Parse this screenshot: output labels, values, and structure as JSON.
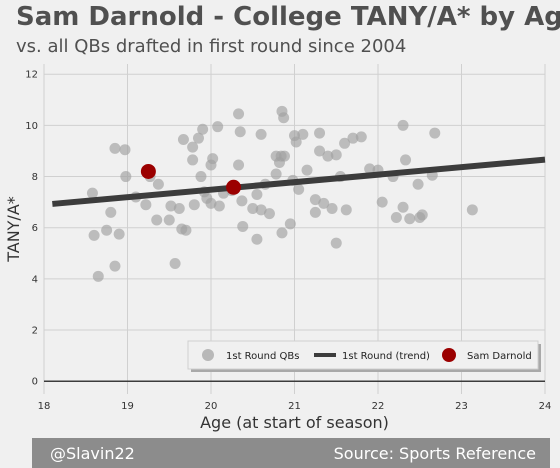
{
  "header": {
    "title": "Sam Darnold - College TANY/A* by Age",
    "subtitle": "vs. all QBs drafted in first round since 2004"
  },
  "footer": {
    "credit": "@Slavin22",
    "source": "Source: Sports Reference"
  },
  "chart_data": {
    "type": "scatter",
    "xlabel": "Age (at start of season)",
    "ylabel": "TANY/A*",
    "xlim": [
      18,
      24
    ],
    "ylim": [
      -0.5,
      12.4
    ],
    "xticks": [
      18,
      19,
      20,
      21,
      22,
      23,
      24
    ],
    "yticks": [
      0,
      2,
      4,
      6,
      8,
      10,
      12
    ],
    "grid": true,
    "legend_position": "bottom-right",
    "colors": {
      "qbs": "#a0a0a0",
      "trend": "#3c3c3c",
      "darnold": "#9b0000",
      "baseline": "#3c3c3c"
    },
    "series": [
      {
        "name": "1st Round QBs",
        "kind": "scatter",
        "points": [
          [
            18.58,
            7.35
          ],
          [
            18.6,
            5.7
          ],
          [
            18.65,
            4.1
          ],
          [
            18.75,
            5.9
          ],
          [
            18.8,
            6.6
          ],
          [
            18.85,
            9.1
          ],
          [
            18.85,
            4.5
          ],
          [
            18.9,
            5.75
          ],
          [
            18.97,
            9.05
          ],
          [
            18.98,
            8.0
          ],
          [
            19.1,
            7.2
          ],
          [
            19.22,
            6.9
          ],
          [
            19.27,
            8.0
          ],
          [
            19.35,
            6.3
          ],
          [
            19.37,
            7.7
          ],
          [
            19.5,
            6.3
          ],
          [
            19.52,
            6.85
          ],
          [
            19.57,
            4.6
          ],
          [
            19.62,
            6.75
          ],
          [
            19.65,
            5.95
          ],
          [
            19.67,
            9.45
          ],
          [
            19.7,
            5.9
          ],
          [
            19.78,
            8.65
          ],
          [
            19.78,
            9.15
          ],
          [
            19.8,
            6.9
          ],
          [
            19.85,
            9.5
          ],
          [
            19.88,
            8.0
          ],
          [
            19.9,
            9.85
          ],
          [
            19.92,
            7.4
          ],
          [
            19.95,
            7.15
          ],
          [
            20.0,
            6.95
          ],
          [
            20.0,
            8.45
          ],
          [
            20.02,
            8.7
          ],
          [
            20.08,
            9.95
          ],
          [
            20.1,
            6.85
          ],
          [
            20.15,
            7.35
          ],
          [
            20.25,
            7.45
          ],
          [
            20.33,
            10.45
          ],
          [
            20.33,
            8.45
          ],
          [
            20.35,
            9.75
          ],
          [
            20.37,
            7.05
          ],
          [
            20.38,
            6.05
          ],
          [
            20.5,
            6.75
          ],
          [
            20.55,
            5.55
          ],
          [
            20.55,
            7.3
          ],
          [
            20.6,
            9.65
          ],
          [
            20.6,
            6.7
          ],
          [
            20.65,
            7.7
          ],
          [
            20.7,
            6.55
          ],
          [
            20.78,
            8.1
          ],
          [
            20.78,
            8.8
          ],
          [
            20.82,
            8.55
          ],
          [
            20.84,
            8.8
          ],
          [
            20.85,
            10.55
          ],
          [
            20.85,
            5.8
          ],
          [
            20.87,
            10.3
          ],
          [
            20.88,
            8.8
          ],
          [
            20.95,
            6.15
          ],
          [
            20.98,
            7.85
          ],
          [
            21.0,
            9.6
          ],
          [
            21.02,
            9.35
          ],
          [
            21.05,
            7.5
          ],
          [
            21.1,
            9.65
          ],
          [
            21.15,
            8.25
          ],
          [
            21.25,
            7.1
          ],
          [
            21.25,
            6.6
          ],
          [
            21.3,
            9.7
          ],
          [
            21.3,
            9.0
          ],
          [
            21.35,
            6.95
          ],
          [
            21.4,
            8.8
          ],
          [
            21.45,
            6.75
          ],
          [
            21.5,
            5.4
          ],
          [
            21.5,
            8.85
          ],
          [
            21.55,
            8.0
          ],
          [
            21.6,
            9.3
          ],
          [
            21.62,
            6.7
          ],
          [
            21.7,
            9.5
          ],
          [
            21.8,
            9.55
          ],
          [
            21.9,
            8.3
          ],
          [
            22.0,
            8.25
          ],
          [
            22.05,
            7.0
          ],
          [
            22.18,
            8.0
          ],
          [
            22.22,
            6.4
          ],
          [
            22.3,
            10.0
          ],
          [
            22.3,
            6.8
          ],
          [
            22.33,
            8.65
          ],
          [
            22.38,
            6.35
          ],
          [
            22.48,
            7.7
          ],
          [
            22.5,
            6.4
          ],
          [
            22.53,
            6.5
          ],
          [
            22.65,
            8.05
          ],
          [
            22.68,
            9.7
          ],
          [
            23.13,
            6.7
          ]
        ]
      },
      {
        "name": "1st Round (trend)",
        "kind": "line",
        "points": [
          [
            18.1,
            6.93
          ],
          [
            24.0,
            8.66
          ]
        ]
      },
      {
        "name": "Sam Darnold",
        "kind": "scatter",
        "points": [
          [
            19.25,
            8.2
          ],
          [
            20.27,
            7.58
          ]
        ]
      }
    ]
  }
}
